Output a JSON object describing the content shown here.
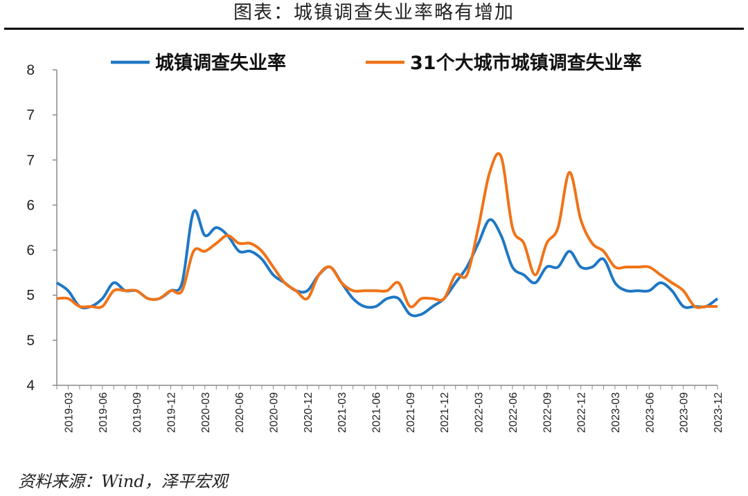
{
  "title": "图表：城镇调查失业率略有增加",
  "source": "资料来源：Wind，泽平宏观",
  "colors": {
    "series1": "#1f77c4",
    "series2": "#f07318",
    "axis": "#888888"
  },
  "chart_data": {
    "type": "line",
    "legend_position": "top",
    "grid": false,
    "y_tick_labels": [
      "4",
      "5",
      "5",
      "6",
      "6",
      "7",
      "7",
      "8"
    ],
    "ylim": [
      4,
      8
    ],
    "x_tick_labels": [
      "2019-03",
      "2019-06",
      "2019-09",
      "2019-12",
      "2020-03",
      "2020-06",
      "2020-09",
      "2020-12",
      "2021-03",
      "2021-06",
      "2021-09",
      "2021-12",
      "2022-03",
      "2022-06",
      "2022-09",
      "2022-12",
      "2023-03",
      "2023-06",
      "2023-09",
      "2023-12"
    ],
    "x": [
      "2019-02",
      "2019-03",
      "2019-04",
      "2019-05",
      "2019-06",
      "2019-07",
      "2019-08",
      "2019-09",
      "2019-10",
      "2019-11",
      "2019-12",
      "2020-01",
      "2020-02",
      "2020-03",
      "2020-04",
      "2020-05",
      "2020-06",
      "2020-07",
      "2020-08",
      "2020-09",
      "2020-10",
      "2020-11",
      "2020-12",
      "2021-01",
      "2021-02",
      "2021-03",
      "2021-04",
      "2021-05",
      "2021-06",
      "2021-07",
      "2021-08",
      "2021-09",
      "2021-10",
      "2021-11",
      "2021-12",
      "2022-01",
      "2022-02",
      "2022-03",
      "2022-04",
      "2022-05",
      "2022-06",
      "2022-07",
      "2022-08",
      "2022-09",
      "2022-10",
      "2022-11",
      "2022-12",
      "2023-01",
      "2023-02",
      "2023-03",
      "2023-04",
      "2023-05",
      "2023-06",
      "2023-07",
      "2023-08",
      "2023-09",
      "2023-10",
      "2023-11",
      "2023-12"
    ],
    "series": [
      {
        "name": "城镇调查失业率",
        "values": [
          5.3,
          5.2,
          5.0,
          5.0,
          5.1,
          5.3,
          5.2,
          5.2,
          5.1,
          5.1,
          5.2,
          5.3,
          6.2,
          5.9,
          6.0,
          5.9,
          5.7,
          5.7,
          5.6,
          5.4,
          5.3,
          5.2,
          5.2,
          5.4,
          5.5,
          5.3,
          5.1,
          5.0,
          5.0,
          5.1,
          5.1,
          4.9,
          4.9,
          5.0,
          5.1,
          5.3,
          5.5,
          5.8,
          6.1,
          5.9,
          5.5,
          5.4,
          5.3,
          5.5,
          5.5,
          5.7,
          5.5,
          5.5,
          5.6,
          5.3,
          5.2,
          5.2,
          5.2,
          5.3,
          5.2,
          5.0,
          5.0,
          5.0,
          5.1
        ]
      },
      {
        "name": "31个大城市城镇调查失业率",
        "values": [
          5.1,
          5.1,
          5.0,
          5.0,
          5.0,
          5.2,
          5.2,
          5.2,
          5.1,
          5.1,
          5.2,
          5.2,
          5.7,
          5.7,
          5.8,
          5.9,
          5.8,
          5.8,
          5.7,
          5.5,
          5.3,
          5.2,
          5.1,
          5.4,
          5.5,
          5.3,
          5.2,
          5.2,
          5.2,
          5.2,
          5.3,
          5.0,
          5.1,
          5.1,
          5.1,
          5.4,
          5.4,
          6.0,
          6.7,
          6.9,
          6.0,
          5.8,
          5.4,
          5.8,
          6.0,
          6.7,
          6.1,
          5.8,
          5.7,
          5.5,
          5.5,
          5.5,
          5.5,
          5.4,
          5.3,
          5.2,
          5.0,
          5.0,
          5.0
        ]
      }
    ]
  }
}
